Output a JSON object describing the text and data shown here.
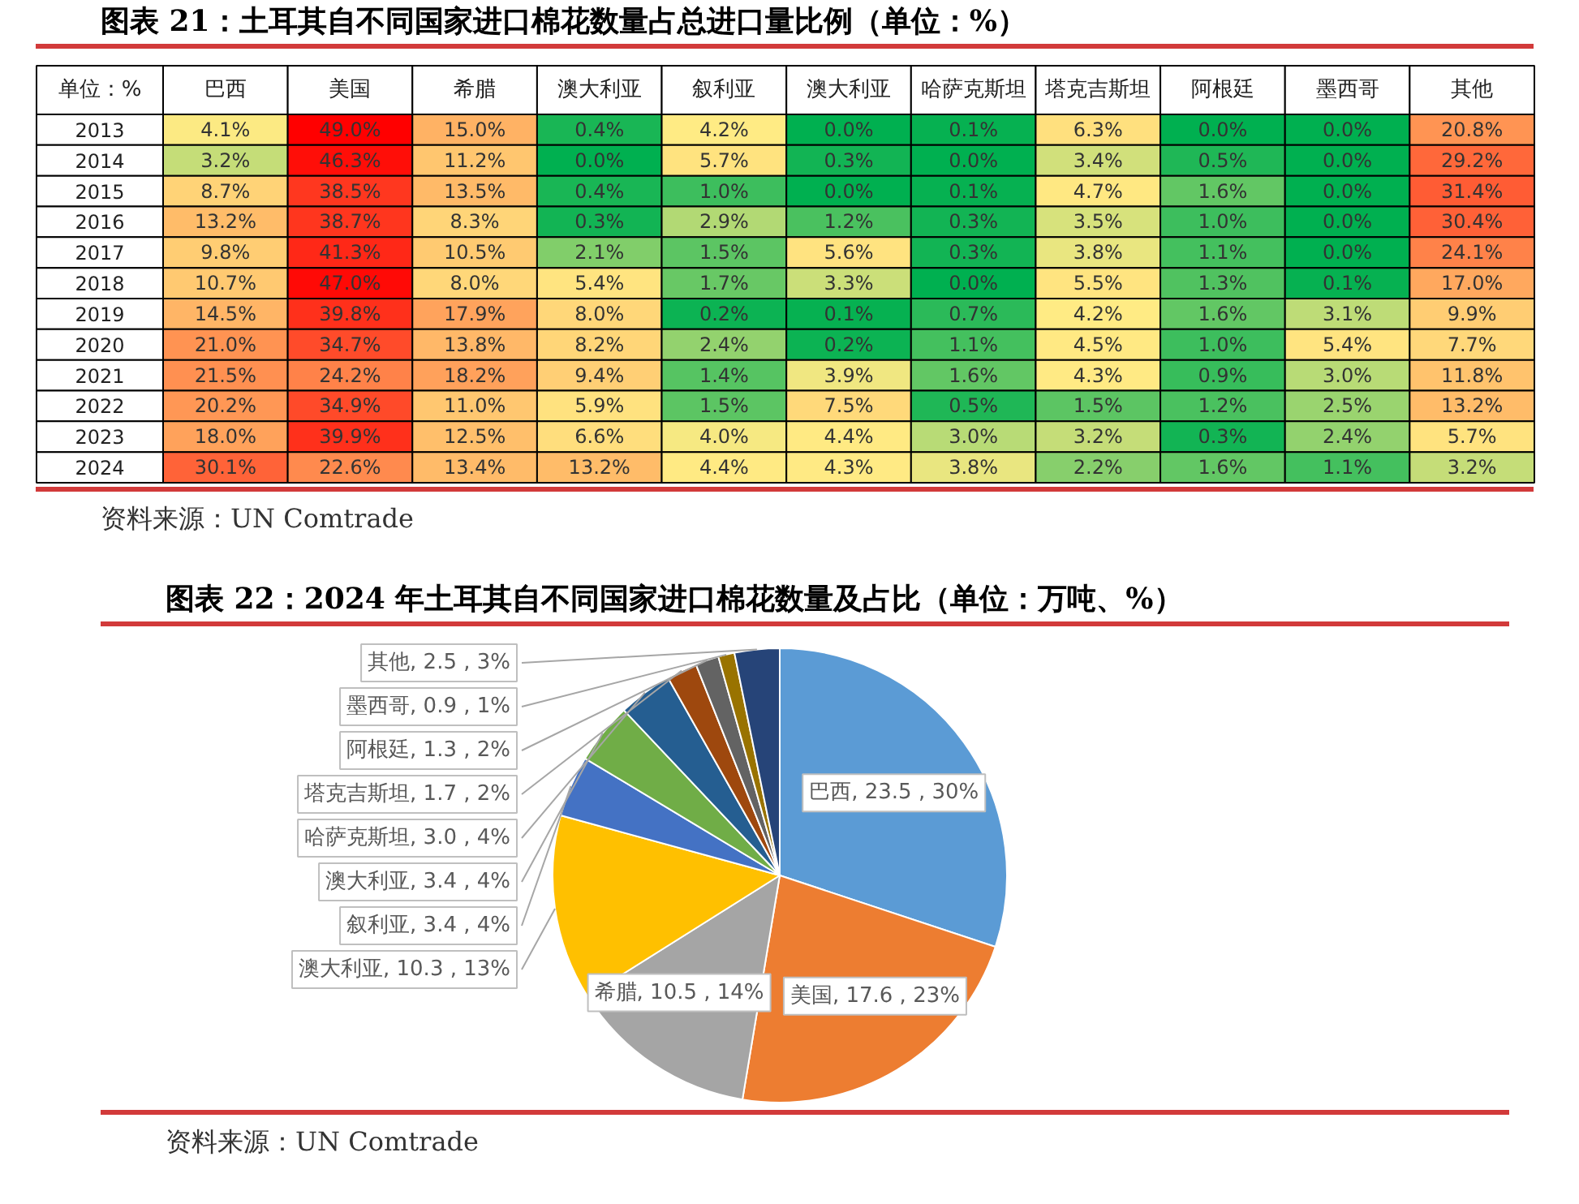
{
  "chart_data": [
    {
      "type": "heatmap",
      "title": "图表 21：土耳其自不同国家进口棉花数量占总进口量比例（单位：%）",
      "ylabel": "单位：%",
      "categories": [
        "巴西",
        "美国",
        "希腊",
        "澳大利亚",
        "叙利亚",
        "澳大利亚",
        "哈萨克斯坦",
        "塔克吉斯坦",
        "阿根廷",
        "墨西哥",
        "其他"
      ],
      "y_categories": [
        "2013",
        "2014",
        "2015",
        "2016",
        "2017",
        "2018",
        "2019",
        "2020",
        "2021",
        "2022",
        "2023",
        "2024"
      ],
      "cells": [
        [
          4.1,
          49.0,
          15.0,
          0.4,
          4.2,
          0.0,
          0.1,
          6.3,
          0.0,
          0.0,
          20.8
        ],
        [
          3.2,
          46.3,
          11.2,
          0.0,
          5.7,
          0.3,
          0.0,
          3.4,
          0.5,
          0.0,
          29.2
        ],
        [
          8.7,
          38.5,
          13.5,
          0.4,
          1.0,
          0.0,
          0.1,
          4.7,
          1.6,
          0.0,
          31.4
        ],
        [
          13.2,
          38.7,
          8.3,
          0.3,
          2.9,
          1.2,
          0.3,
          3.5,
          1.0,
          0.0,
          30.4
        ],
        [
          9.8,
          41.3,
          10.5,
          2.1,
          1.5,
          5.6,
          0.3,
          3.8,
          1.1,
          0.0,
          24.1
        ],
        [
          10.7,
          47.0,
          8.0,
          5.4,
          1.7,
          3.3,
          0.0,
          5.5,
          1.3,
          0.1,
          17.0
        ],
        [
          14.5,
          39.8,
          17.9,
          8.0,
          0.2,
          0.1,
          0.7,
          4.2,
          1.6,
          3.1,
          9.9
        ],
        [
          21.0,
          34.7,
          13.8,
          8.2,
          2.4,
          0.2,
          1.1,
          4.5,
          1.0,
          5.4,
          7.7
        ],
        [
          21.5,
          24.2,
          18.2,
          9.4,
          1.4,
          3.9,
          1.6,
          4.3,
          0.9,
          3.0,
          11.8
        ],
        [
          20.2,
          34.9,
          11.0,
          5.9,
          1.5,
          7.5,
          0.5,
          1.5,
          1.2,
          2.5,
          13.2
        ],
        [
          18.0,
          39.9,
          12.5,
          6.6,
          4.0,
          4.4,
          3.0,
          3.2,
          0.3,
          2.4,
          5.7
        ],
        [
          30.1,
          22.6,
          13.4,
          13.2,
          4.4,
          4.3,
          3.8,
          2.2,
          1.6,
          1.1,
          3.2
        ]
      ],
      "cell_labels": [
        [
          "4.1%",
          "49.0%",
          "15.0%",
          "0.4%",
          "4.2%",
          "0.0%",
          "0.1%",
          "6.3%",
          "0.0%",
          "0.0%",
          "20.8%"
        ],
        [
          "3.2%",
          "46.3%",
          "11.2%",
          "0.0%",
          "5.7%",
          "0.3%",
          "0.0%",
          "3.4%",
          "0.5%",
          "0.0%",
          "29.2%"
        ],
        [
          "8.7%",
          "38.5%",
          "13.5%",
          "0.4%",
          "1.0%",
          "0.0%",
          "0.1%",
          "4.7%",
          "1.6%",
          "0.0%",
          "31.4%"
        ],
        [
          "13.2%",
          "38.7%",
          "8.3%",
          "0.3%",
          "2.9%",
          "1.2%",
          "0.3%",
          "3.5%",
          "1.0%",
          "0.0%",
          "30.4%"
        ],
        [
          "9.8%",
          "41.3%",
          "10.5%",
          "2.1%",
          "1.5%",
          "5.6%",
          "0.3%",
          "3.8%",
          "1.1%",
          "0.0%",
          "24.1%"
        ],
        [
          "10.7%",
          "47.0%",
          "8.0%",
          "5.4%",
          "1.7%",
          "3.3%",
          "0.0%",
          "5.5%",
          "1.3%",
          "0.1%",
          "17.0%"
        ],
        [
          "14.5%",
          "39.8%",
          "17.9%",
          "8.0%",
          "0.2%",
          "0.1%",
          "0.7%",
          "4.2%",
          "1.6%",
          "3.1%",
          "9.9%"
        ],
        [
          "21.0%",
          "34.7%",
          "13.8%",
          "8.2%",
          "2.4%",
          "0.2%",
          "1.1%",
          "4.5%",
          "1.0%",
          "5.4%",
          "7.7%"
        ],
        [
          "21.5%",
          "24.2%",
          "18.2%",
          "9.4%",
          "1.4%",
          "3.9%",
          "1.6%",
          "4.3%",
          "0.9%",
          "3.0%",
          "11.8%"
        ],
        [
          "20.2%",
          "34.9%",
          "11.0%",
          "5.9%",
          "1.5%",
          "7.5%",
          "0.5%",
          "1.5%",
          "1.2%",
          "2.5%",
          "13.2%"
        ],
        [
          "18.0%",
          "39.9%",
          "12.5%",
          "6.6%",
          "4.0%",
          "4.4%",
          "3.0%",
          "3.2%",
          "0.3%",
          "2.4%",
          "5.7%"
        ],
        [
          "30.1%",
          "22.6%",
          "13.4%",
          "13.2%",
          "4.4%",
          "4.3%",
          "3.8%",
          "2.2%",
          "1.6%",
          "1.1%",
          "3.2%"
        ]
      ],
      "colors": [
        "#00b050",
        "#ffeb84",
        "#ff0000"
      ],
      "annotations": [
        "资料来源：UN Comtrade"
      ]
    },
    {
      "type": "pie",
      "title": "图表 22：2024 年土耳其自不同国家进口棉花数量及占比（单位：万吨、%）",
      "categories": [
        "巴西",
        "美国",
        "希腊",
        "澳大利亚",
        "叙利亚",
        "澳大利亚",
        "哈萨克斯坦",
        "塔克吉斯坦",
        "阿根廷",
        "墨西哥",
        "其他"
      ],
      "values": [
        23.5,
        17.6,
        10.5,
        10.3,
        3.4,
        3.4,
        3.0,
        1.7,
        1.3,
        0.9,
        2.5
      ],
      "value_labels": [
        "23.5 , 30%",
        "17.6 , 23%",
        "10.5 , 14%",
        "10.3 , 13%",
        "3.4 , 4%",
        "3.4 , 4%",
        "3.0 , 4%",
        "1.7 , 2%",
        "1.3 , 2%",
        "0.9 , 1%",
        "2.5 , 3%"
      ],
      "colors": [
        "#5b9bd5",
        "#ed7d31",
        "#a5a5a5",
        "#ffc000",
        "#4472c4",
        "#70ad47",
        "#255e91",
        "#9e480e",
        "#636363",
        "#997300",
        "#264478"
      ],
      "annotations": [
        "资料来源：UN Comtrade"
      ]
    }
  ]
}
